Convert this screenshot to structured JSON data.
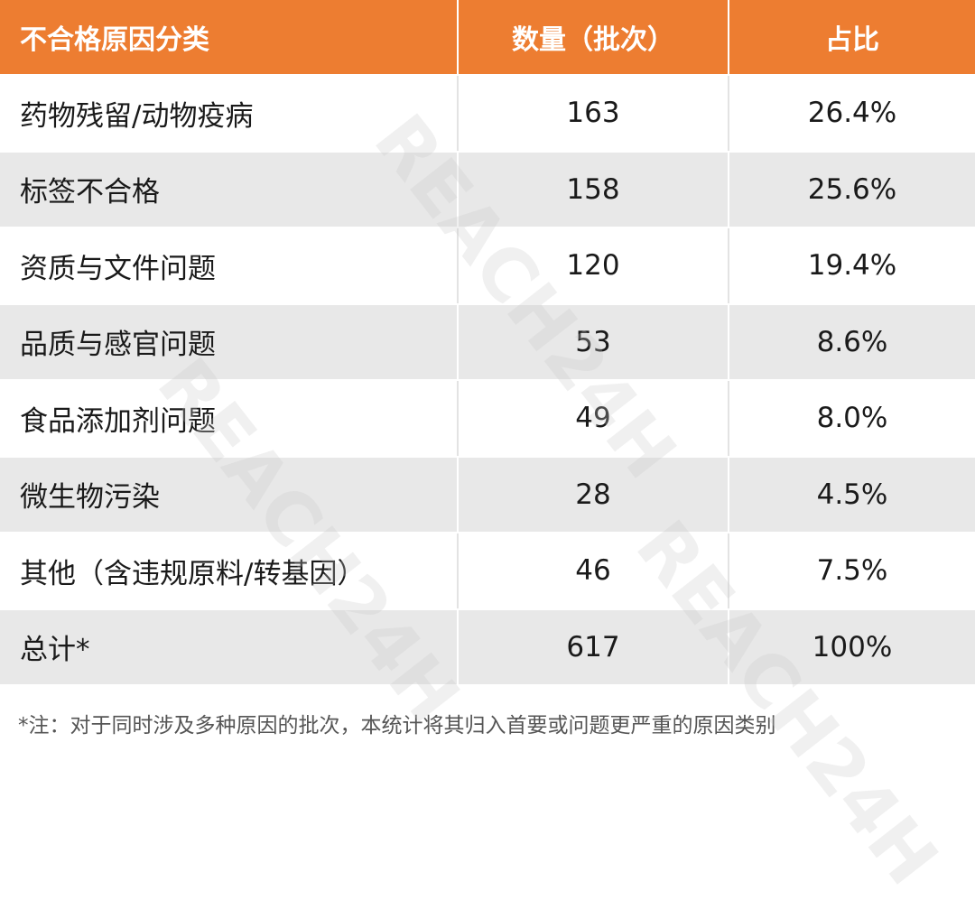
{
  "table": {
    "headers": [
      "不合格原因分类",
      "数量（批次）",
      "占比"
    ],
    "rows": [
      {
        "category": "药物残留/动物疫病",
        "count": "163",
        "share": "26.4%"
      },
      {
        "category": "标签不合格",
        "count": "158",
        "share": "25.6%"
      },
      {
        "category": "资质与文件问题",
        "count": "120",
        "share": "19.4%"
      },
      {
        "category": "品质与感官问题",
        "count": "53",
        "share": "8.6%"
      },
      {
        "category": "食品添加剂问题",
        "count": "49",
        "share": "8.0%"
      },
      {
        "category": "微生物污染",
        "count": "28",
        "share": "4.5%"
      },
      {
        "category": "其他（含违规原料/转基因）",
        "count": "46",
        "share": "7.5%"
      },
      {
        "category": "总计*",
        "count": "617",
        "share": "100%"
      }
    ]
  },
  "footnote": "*注：对于同时涉及多种原因的批次，本统计将其归入首要或问题更严重的原因类别",
  "watermark": {
    "text": "REACH24H",
    "color": "#c8c8c8"
  },
  "colors": {
    "header_bg": "#ed7d31",
    "header_text": "#ffffff",
    "stripe_bg": "#e8e8e8"
  }
}
